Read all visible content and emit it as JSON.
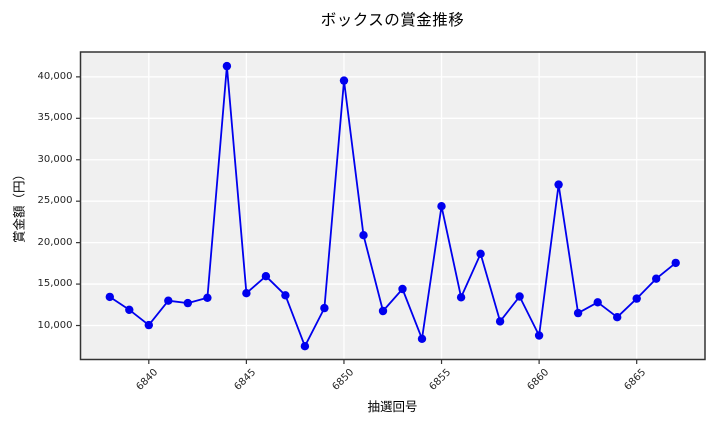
{
  "chart_data": {
    "type": "line",
    "title": "ボックスの賞金推移",
    "xlabel": "抽選回号",
    "ylabel": "賞金額（円）",
    "x": [
      6838,
      6839,
      6840,
      6841,
      6842,
      6843,
      6844,
      6845,
      6846,
      6847,
      6848,
      6849,
      6850,
      6851,
      6852,
      6853,
      6854,
      6855,
      6856,
      6857,
      6858,
      6859,
      6860,
      6861,
      6862,
      6863,
      6864,
      6865,
      6866,
      6867
    ],
    "values": [
      13450,
      11900,
      10050,
      13000,
      12700,
      13350,
      41300,
      13900,
      15950,
      13650,
      7500,
      12100,
      39550,
      20900,
      11750,
      14400,
      8400,
      24400,
      13400,
      18650,
      10500,
      13500,
      8800,
      27000,
      11500,
      12800,
      11000,
      13250,
      15650,
      17550
    ],
    "xlim": [
      6836.5,
      6868.5
    ],
    "ylim": [
      5900,
      43000
    ],
    "x_ticks": [
      {
        "value": 6840,
        "label": "6840"
      },
      {
        "value": 6845,
        "label": "6845"
      },
      {
        "value": 6850,
        "label": "6850"
      },
      {
        "value": 6855,
        "label": "6855"
      },
      {
        "value": 6860,
        "label": "6860"
      },
      {
        "value": 6865,
        "label": "6865"
      }
    ],
    "y_ticks": [
      {
        "value": 10000,
        "label": "10,000"
      },
      {
        "value": 15000,
        "label": "15,000"
      },
      {
        "value": 20000,
        "label": "20,000"
      },
      {
        "value": 25000,
        "label": "25,000"
      },
      {
        "value": 30000,
        "label": "30,000"
      },
      {
        "value": 35000,
        "label": "35,000"
      },
      {
        "value": 40000,
        "label": "40,000"
      }
    ],
    "legend_position": "none",
    "grid": true,
    "colors": {
      "line": "#0000EE",
      "marker": "#0000EE",
      "plot_background": "#F0F0F0",
      "figure_background": "#FFFFFF",
      "grid_color": "#FFFFFF",
      "spine_color": "#333333",
      "text_color": "#000000",
      "tick_text_color": "#262626"
    }
  }
}
